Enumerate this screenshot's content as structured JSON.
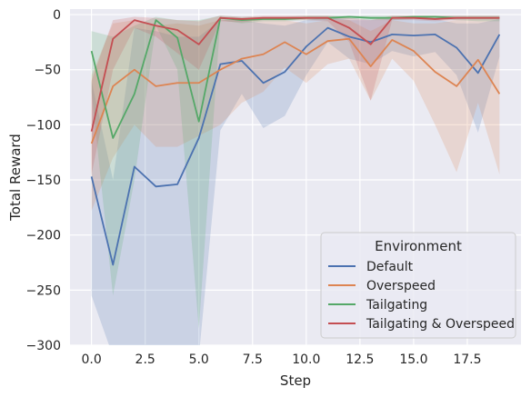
{
  "chart_data": {
    "type": "line",
    "xlabel": "Step",
    "ylabel": "Total Reward",
    "xlim": [
      -1,
      20
    ],
    "ylim": [
      -300,
      5
    ],
    "xticks": [
      "0.0",
      "2.5",
      "5.0",
      "7.5",
      "10.0",
      "12.5",
      "15.0",
      "17.5"
    ],
    "xtick_values": [
      0,
      2.5,
      5,
      7.5,
      10,
      12.5,
      15,
      17.5
    ],
    "yticks": [
      "0",
      "−50",
      "−100",
      "−150",
      "−200",
      "−250",
      "−300"
    ],
    "ytick_values": [
      0,
      -50,
      -100,
      -150,
      -200,
      -250,
      -300
    ],
    "grid": true,
    "background": "#eaeaf2",
    "legend": {
      "title": "Environment",
      "placement": "lower-right"
    },
    "x": [
      0,
      1,
      2,
      3,
      4,
      5,
      6,
      7,
      8,
      9,
      10,
      11,
      12,
      13,
      14,
      15,
      16,
      17,
      18,
      19
    ],
    "series": [
      {
        "name": "Default",
        "color": "#4c72b0",
        "values": [
          -147,
          -227,
          -138,
          -156,
          -154,
          -112,
          -45,
          -42,
          -62,
          -52,
          -29,
          -12,
          -20,
          -25,
          -18,
          -19,
          -18,
          -30,
          -53,
          -18
        ],
        "lower": [
          -255,
          -310,
          -300,
          -310,
          -310,
          -310,
          -105,
          -72,
          -103,
          -92,
          -55,
          -25,
          -40,
          -45,
          -33,
          -38,
          -34,
          -55,
          -107,
          -38
        ],
        "upper": [
          -60,
          -150,
          -12,
          -15,
          -20,
          -20,
          -5,
          -5,
          -8,
          -10,
          -5,
          -2,
          -5,
          -5,
          -4,
          -4,
          -4,
          -8,
          -8,
          -4
        ]
      },
      {
        "name": "Overspeed",
        "color": "#dd8452",
        "values": [
          -117,
          -65,
          -50,
          -65,
          -62,
          -62,
          -50,
          -40,
          -36,
          -25,
          -36,
          -24,
          -22,
          -47,
          -23,
          -33,
          -52,
          -65,
          -41,
          -72
        ],
        "lower": [
          -178,
          -130,
          -100,
          -120,
          -120,
          -110,
          -100,
          -80,
          -70,
          -48,
          -62,
          -45,
          -40,
          -78,
          -40,
          -60,
          -100,
          -143,
          -80,
          -145
        ],
        "upper": [
          -55,
          -8,
          -5,
          -10,
          -8,
          -10,
          -5,
          -5,
          -5,
          -5,
          -8,
          -5,
          -5,
          -15,
          -5,
          -8,
          -8,
          -5,
          -5,
          -5
        ]
      },
      {
        "name": "Tailgating",
        "color": "#55a868",
        "values": [
          -33,
          -112,
          -72,
          -5,
          -21,
          -97,
          -3,
          -5,
          -4,
          -4,
          -3,
          -3,
          -2,
          -3,
          -3,
          -2,
          -2,
          -3,
          -3,
          -3
        ],
        "lower": [
          -70,
          -255,
          -150,
          -10,
          -50,
          -285,
          -5,
          -8,
          -6,
          -6,
          -5,
          -5,
          -4,
          -5,
          -5,
          -4,
          -4,
          -5,
          -6,
          -6
        ],
        "upper": [
          -15,
          -20,
          -10,
          -2,
          -5,
          -5,
          -1,
          -2,
          -2,
          -2,
          -1,
          -1,
          -1,
          -1,
          -1,
          -1,
          -1,
          -1,
          -1,
          -1
        ]
      },
      {
        "name": "Tailgating & Overspeed",
        "color": "#c44e52",
        "values": [
          -106,
          -22,
          -5,
          -10,
          -14,
          -27,
          -3,
          -4,
          -3,
          -3,
          -3,
          -3,
          -12,
          -27,
          -3,
          -3,
          -4,
          -3,
          -3,
          -3
        ],
        "lower": [
          -145,
          -50,
          -12,
          -20,
          -35,
          -50,
          -6,
          -7,
          -5,
          -5,
          -5,
          -6,
          -25,
          -78,
          -5,
          -5,
          -6,
          -5,
          -5,
          -5
        ],
        "upper": [
          -60,
          -5,
          -2,
          -3,
          -5,
          -6,
          -1,
          -2,
          -1,
          -1,
          -1,
          -1,
          -3,
          -5,
          -1,
          -1,
          -1,
          -1,
          -1,
          -1
        ]
      }
    ]
  }
}
